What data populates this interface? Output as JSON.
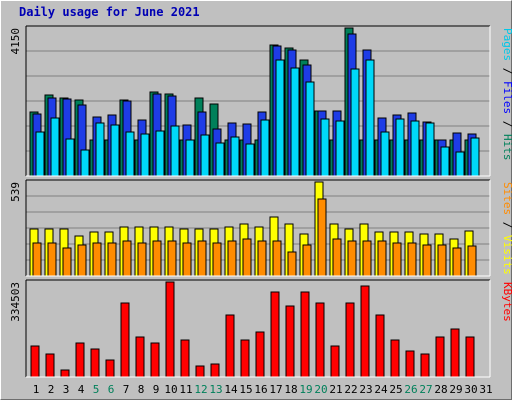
{
  "chart_data": [
    {
      "type": "bar",
      "title": "Daily usage for June 2021",
      "ylabel_parts": [
        {
          "text": "Pages",
          "color": "#00c8e8"
        },
        {
          "text": " / ",
          "color": "#000000"
        },
        {
          "text": "Files",
          "color": "#0000ff"
        },
        {
          "text": " / ",
          "color": "#000000"
        },
        {
          "text": "Hits",
          "color": "#00805a"
        }
      ],
      "y_max_label": "4150",
      "ylim": [
        0,
        4150
      ],
      "categories": [
        "1",
        "2",
        "3",
        "4",
        "5",
        "6",
        "7",
        "8",
        "9",
        "10",
        "11",
        "12",
        "13",
        "14",
        "15",
        "16",
        "17",
        "18",
        "19",
        "20",
        "21",
        "22",
        "23",
        "24",
        "25",
        "26",
        "27",
        "28",
        "29",
        "30",
        "31"
      ],
      "weekend_days": [
        "5",
        "6",
        "12",
        "13",
        "19",
        "20",
        "26",
        "27"
      ],
      "series": [
        {
          "name": "Hits",
          "color": "#00805a",
          "values": [
            1800,
            2280,
            2200,
            2130,
            1000,
            1000,
            2140,
            1000,
            2350,
            2300,
            1000,
            2180,
            2020,
            1000,
            1000,
            1000,
            3680,
            3580,
            3250,
            1820,
            1000,
            4150,
            1000,
            1000,
            1000,
            1000,
            1000,
            1000,
            1000,
            1000,
            0
          ]
        },
        {
          "name": "Files",
          "color": "#1e3ce6",
          "values": [
            1750,
            2200,
            2150,
            2000,
            1650,
            1700,
            2100,
            1580,
            2300,
            2250,
            1440,
            1800,
            1330,
            1500,
            1450,
            1800,
            3650,
            3520,
            3100,
            1820,
            1820,
            3970,
            3540,
            1630,
            1700,
            1780,
            1510,
            1000,
            1200,
            1190,
            0
          ]
        },
        {
          "name": "Pages",
          "color": "#00d8f8",
          "values": [
            1240,
            1630,
            1040,
            740,
            1480,
            1430,
            1220,
            1180,
            1250,
            1400,
            1000,
            1140,
            930,
            1100,
            890,
            1560,
            3240,
            3040,
            2630,
            1610,
            1530,
            3010,
            3250,
            1240,
            1590,
            1550,
            1480,
            800,
            670,
            1070,
            0
          ]
        }
      ]
    },
    {
      "type": "bar",
      "ylabel_parts": [
        {
          "text": "Sites",
          "color": "#ff8c00"
        },
        {
          "text": " / ",
          "color": "#000000"
        },
        {
          "text": "Visits",
          "color": "#ffff00"
        }
      ],
      "y_max_label": "539",
      "ylim": [
        0,
        539
      ],
      "series": [
        {
          "name": "Visits",
          "color": "#ffff00",
          "values": [
            270,
            270,
            270,
            230,
            250,
            250,
            280,
            280,
            280,
            280,
            270,
            270,
            270,
            280,
            300,
            280,
            340,
            300,
            240,
            539,
            300,
            270,
            300,
            250,
            250,
            250,
            240,
            240,
            210,
            260,
            0
          ]
        },
        {
          "name": "Sites",
          "color": "#ff8c00",
          "values": [
            190,
            190,
            160,
            180,
            190,
            190,
            200,
            190,
            200,
            200,
            190,
            200,
            190,
            200,
            210,
            200,
            200,
            140,
            180,
            440,
            210,
            200,
            200,
            200,
            190,
            190,
            180,
            180,
            160,
            170,
            0
          ]
        }
      ]
    },
    {
      "type": "bar",
      "ylabel_parts": [
        {
          "text": "KBytes",
          "color": "#ff0000"
        }
      ],
      "y_max_label": "334503",
      "ylim": [
        0,
        334503
      ],
      "series": [
        {
          "name": "KBytes",
          "color": "#ff0000",
          "values": [
            110000,
            80000,
            25000,
            120000,
            100000,
            60000,
            260000,
            140000,
            120000,
            334503,
            130000,
            40000,
            45000,
            220000,
            130000,
            160000,
            300000,
            250000,
            300000,
            260000,
            110000,
            260000,
            320000,
            220000,
            130000,
            90000,
            80000,
            140000,
            170000,
            140000,
            0
          ]
        }
      ]
    }
  ]
}
